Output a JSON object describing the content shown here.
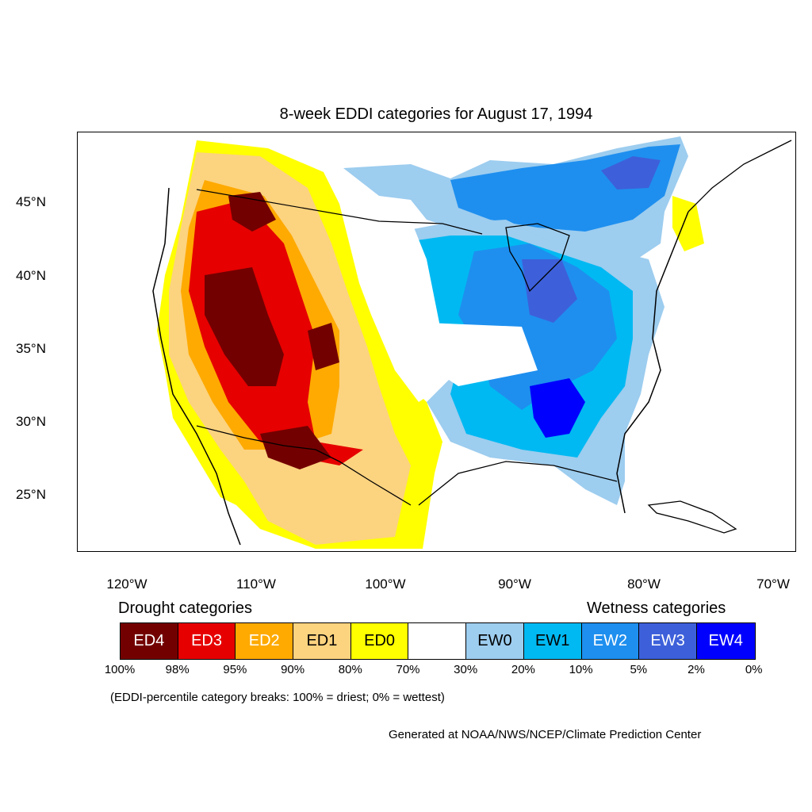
{
  "title": "8-week EDDI categories for August 17, 1994",
  "lat_labels": [
    "45°N",
    "40°N",
    "35°N",
    "30°N",
    "25°N"
  ],
  "lon_labels": [
    "120°W",
    "110°W",
    "100°W",
    "90°W",
    "80°W",
    "70°W"
  ],
  "legend": {
    "drought_heading": "Drought categories",
    "wetness_heading": "Wetness categories",
    "categories": [
      {
        "label": "ED4",
        "color": "#730000",
        "text_color": "#ffffff"
      },
      {
        "label": "ED3",
        "color": "#e60000",
        "text_color": "#ffffff"
      },
      {
        "label": "ED2",
        "color": "#ffaa00",
        "text_color": "#ffffff"
      },
      {
        "label": "ED1",
        "color": "#fcd37f",
        "text_color": "#000000"
      },
      {
        "label": "ED0",
        "color": "#ffff00",
        "text_color": "#000000"
      },
      {
        "label": "",
        "color": "#ffffff",
        "text_color": "#000000"
      },
      {
        "label": "EW0",
        "color": "#9dcdef",
        "text_color": "#000000"
      },
      {
        "label": "EW1",
        "color": "#00b9f2",
        "text_color": "#000000"
      },
      {
        "label": "EW2",
        "color": "#1e8fef",
        "text_color": "#ffffff"
      },
      {
        "label": "EW3",
        "color": "#3d60da",
        "text_color": "#ffffff"
      },
      {
        "label": "EW4",
        "color": "#0000ff",
        "text_color": "#ffffff"
      }
    ],
    "percent_breaks": [
      "100%",
      "98%",
      "95%",
      "90%",
      "80%",
      "70%",
      "30%",
      "20%",
      "10%",
      "5%",
      "2%",
      "0%"
    ]
  },
  "footnote": "(EDDI-percentile category breaks: 100% = driest; 0% = wettest)",
  "credit": "Generated at NOAA/NWS/NCEP/Climate Prediction Center"
}
